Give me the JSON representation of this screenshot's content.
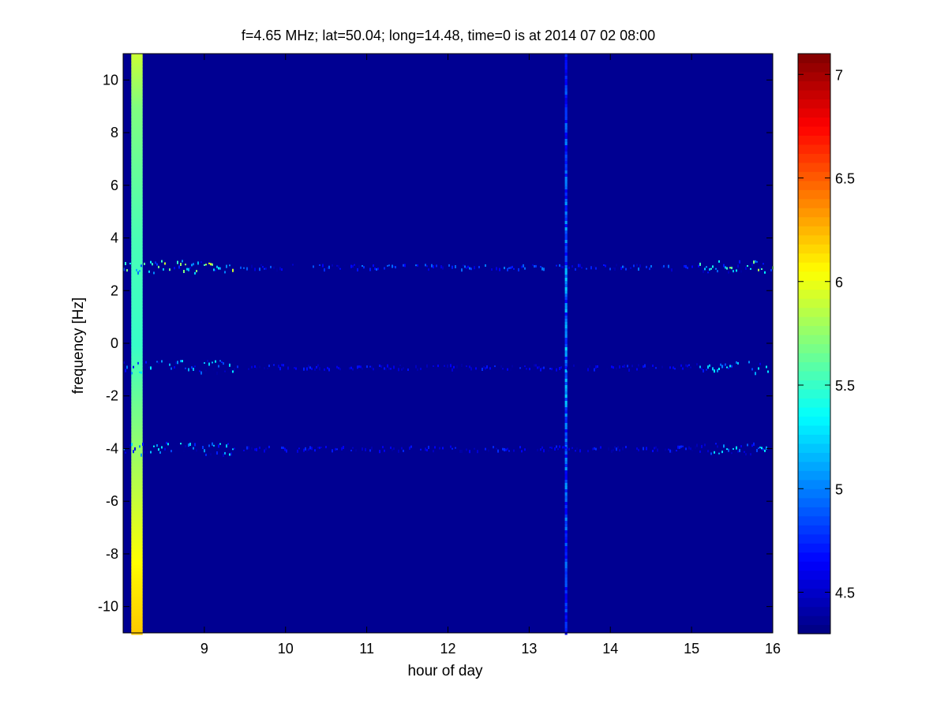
{
  "chart_data": {
    "type": "heatmap",
    "title": "f=4.65 MHz;  lat=50.04; long=14.48, time=0 is at 2014 07 02 08:00",
    "xlabel": "hour of day",
    "ylabel": "frequency [Hz]",
    "xlim": [
      8.0,
      16.0
    ],
    "ylim": [
      -11.0,
      11.0
    ],
    "x_ticks": [
      9,
      10,
      11,
      12,
      13,
      14,
      15,
      16
    ],
    "y_ticks": [
      10,
      8,
      6,
      4,
      2,
      0,
      -2,
      -4,
      -6,
      -8,
      -10
    ],
    "colorbar": {
      "range": [
        4.3,
        7.1
      ],
      "ticks": [
        7,
        6.5,
        6,
        5.5,
        5,
        4.5
      ]
    },
    "background_value": 4.35,
    "vertical_bands": [
      {
        "x_start": 8.1,
        "x_end": 8.24,
        "values_by_freq": [
          {
            "freq": 11,
            "value": 5.9
          },
          {
            "freq": 9,
            "value": 5.7
          },
          {
            "freq": 4,
            "value": 5.55
          },
          {
            "freq": 0,
            "value": 5.5
          },
          {
            "freq": -3,
            "value": 5.7
          },
          {
            "freq": -6,
            "value": 5.9
          },
          {
            "freq": -9,
            "value": 6.1
          },
          {
            "freq": -11,
            "value": 6.2
          }
        ]
      },
      {
        "x_start": 13.44,
        "x_end": 13.47,
        "values_by_freq": [
          {
            "freq": 11,
            "value": 4.7
          },
          {
            "freq": 0,
            "value": 5.0
          },
          {
            "freq": -11,
            "value": 4.7
          }
        ]
      }
    ],
    "horizontal_traces": [
      {
        "freq": 2.9,
        "x_start": 8.0,
        "x_end": 16.0,
        "peak_value": 6.0
      },
      {
        "freq": -0.9,
        "x_start": 8.0,
        "x_end": 16.0,
        "peak_value": 5.4
      },
      {
        "freq": -4.0,
        "x_start": 8.0,
        "x_end": 16.0,
        "peak_value": 5.4
      }
    ],
    "colors": {
      "background": "#00008f",
      "axis": "#000000"
    }
  }
}
